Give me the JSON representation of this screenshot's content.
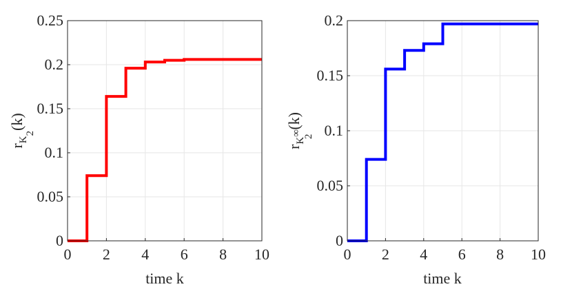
{
  "chart_data": [
    {
      "type": "line",
      "step": "post",
      "title": "",
      "xlabel": "time k",
      "ylabel": {
        "base": "r",
        "sub": "K",
        "subsub": "2",
        "suffix": "(k)"
      },
      "xlim": [
        0,
        10
      ],
      "ylim": [
        0,
        0.25
      ],
      "xticks": [
        0,
        2,
        4,
        6,
        8,
        10
      ],
      "xtick_labels": [
        "0",
        "2",
        "4",
        "6",
        "8",
        "10"
      ],
      "yticks": [
        0,
        0.05,
        0.1,
        0.15,
        0.2,
        0.25
      ],
      "ytick_labels": [
        "0",
        "0.05",
        "0.1",
        "0.15",
        "0.2",
        "0.25"
      ],
      "grid": true,
      "color": "#ff0000",
      "series": [
        {
          "x": [
            0,
            1,
            2,
            3,
            4,
            5,
            6,
            7,
            8,
            9,
            10
          ],
          "y": [
            0,
            0.074,
            0.164,
            0.196,
            0.203,
            0.205,
            0.206,
            0.206,
            0.206,
            0.206,
            0.206
          ]
        }
      ]
    },
    {
      "type": "line",
      "step": "post",
      "title": "",
      "xlabel": "time k",
      "ylabel": {
        "base": "r",
        "sub": "K",
        "subsup": "∞",
        "subsub": "2",
        "suffix": "(k)"
      },
      "xlim": [
        0,
        10
      ],
      "ylim": [
        0,
        0.2
      ],
      "xticks": [
        0,
        2,
        4,
        6,
        8,
        10
      ],
      "xtick_labels": [
        "0",
        "2",
        "4",
        "6",
        "8",
        "10"
      ],
      "yticks": [
        0,
        0.05,
        0.1,
        0.15,
        0.2
      ],
      "ytick_labels": [
        "0",
        "0.05",
        "0.1",
        "0.15",
        "0.2"
      ],
      "grid": true,
      "color": "#0000ff",
      "series": [
        {
          "x": [
            0,
            1,
            2,
            3,
            4,
            5,
            6,
            7,
            8,
            9,
            10
          ],
          "y": [
            0,
            0.074,
            0.156,
            0.173,
            0.179,
            0.197,
            0.197,
            0.197,
            0.197,
            0.197,
            0.197
          ]
        }
      ]
    }
  ]
}
